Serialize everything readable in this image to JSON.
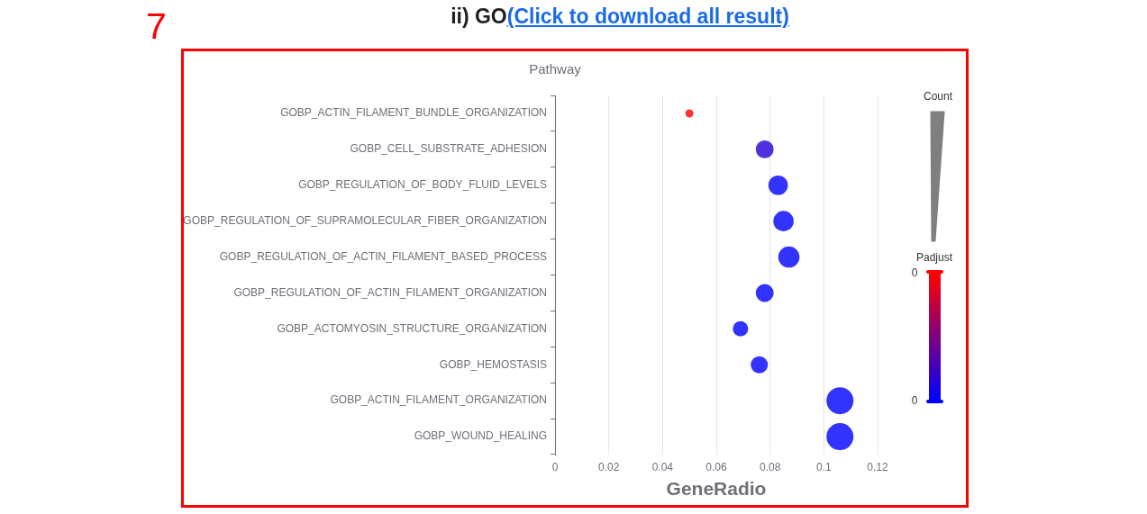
{
  "chart_data": {
    "type": "bubble",
    "orientation": "horizontal",
    "title": "ii) GO",
    "annotations": [
      "(Click to download all result)",
      "7",
      "0",
      "0"
    ],
    "ylabel": "Pathway",
    "xlabel": "GeneRadio",
    "legend_title": "Count",
    "clabel": "Padjust",
    "categories": [
      "GOBP_ACTIN_FILAMENT_BUNDLE_ORGANIZATION",
      "GOBP_CELL_SUBSTRATE_ADHESION",
      "GOBP_REGULATION_OF_BODY_FLUID_LEVELS",
      "GOBP_REGULATION_OF_SUPRAMOLECULAR_FIBER_ORGANIZATION",
      "GOBP_REGULATION_OF_ACTIN_FILAMENT_BASED_PROCESS",
      "GOBP_REGULATION_OF_ACTIN_FILAMENT_ORGANIZATION",
      "GOBP_ACTOMYOSIN_STRUCTURE_ORGANIZATION",
      "GOBP_HEMOSTASIS",
      "GOBP_ACTIN_FILAMENT_ORGANIZATION",
      "GOBP_WOUND_HEALING"
    ],
    "values": [
      0.05,
      0.078,
      0.083,
      0.085,
      0.087,
      0.078,
      0.069,
      0.076,
      0.106,
      0.106
    ],
    "sizes": [
      0.09,
      0.44,
      0.52,
      0.57,
      0.62,
      0.44,
      0.32,
      0.4,
      1,
      1
    ],
    "colors": [
      "#ff3333",
      "#5030dd",
      "#3333ff",
      "#3333ff",
      "#3333ff",
      "#3333ff",
      "#3333ff",
      "#3333ff",
      "#3333ff",
      "#3333ff"
    ],
    "xlim": [
      0,
      0.12
    ],
    "xticks": [
      0,
      0.02,
      0.04,
      0.06,
      0.08,
      0.1,
      0.12
    ],
    "grid": "x"
  }
}
